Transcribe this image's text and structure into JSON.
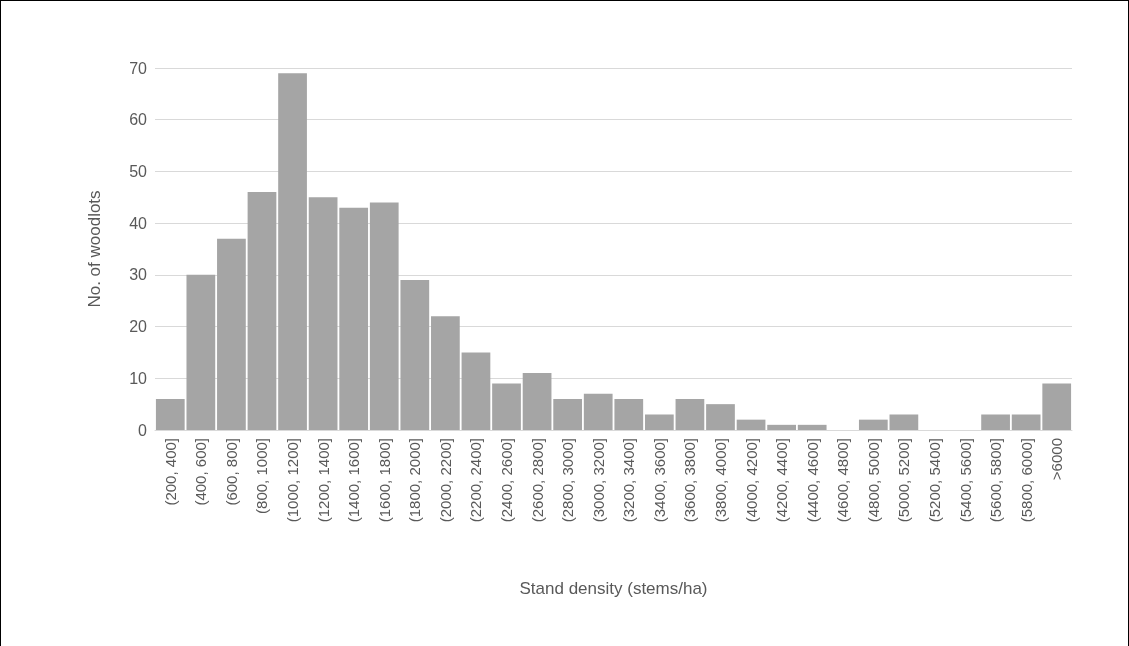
{
  "chart_data": {
    "type": "bar",
    "xlabel": "Stand density (stems/ha)",
    "ylabel": "No. of woodlots",
    "categories": [
      "(200, 400]",
      "(400, 600]",
      "(600, 800]",
      "(800, 1000]",
      "(1000, 1200]",
      "(1200, 1400]",
      "(1400, 1600]",
      "(1600, 1800]",
      "(1800, 2000]",
      "(2000, 2200]",
      "(2200, 2400]",
      "(2400, 2600]",
      "(2600, 2800]",
      "(2800, 3000]",
      "(3000, 3200]",
      "(3200, 3400]",
      "(3400, 3600]",
      "(3600, 3800]",
      "(3800, 4000]",
      "(4000, 4200]",
      "(4200, 4400]",
      "(4400, 4600]",
      "(4600, 4800]",
      "(4800, 5000]",
      "(5000, 5200]",
      "(5200, 5400]",
      "(5400, 5600]",
      "(5600, 5800]",
      "(5800, 6000]",
      ">6000"
    ],
    "values": [
      6,
      30,
      37,
      46,
      69,
      45,
      43,
      44,
      29,
      22,
      15,
      9,
      11,
      6,
      7,
      6,
      3,
      6,
      5,
      2,
      1,
      1,
      0,
      2,
      3,
      0,
      0,
      3,
      3,
      9
    ],
    "color": "#a5a5a5",
    "ylim": [
      0,
      70
    ],
    "yticks": [
      0,
      10,
      20,
      30,
      40,
      50,
      60,
      70
    ],
    "grid": "y"
  }
}
